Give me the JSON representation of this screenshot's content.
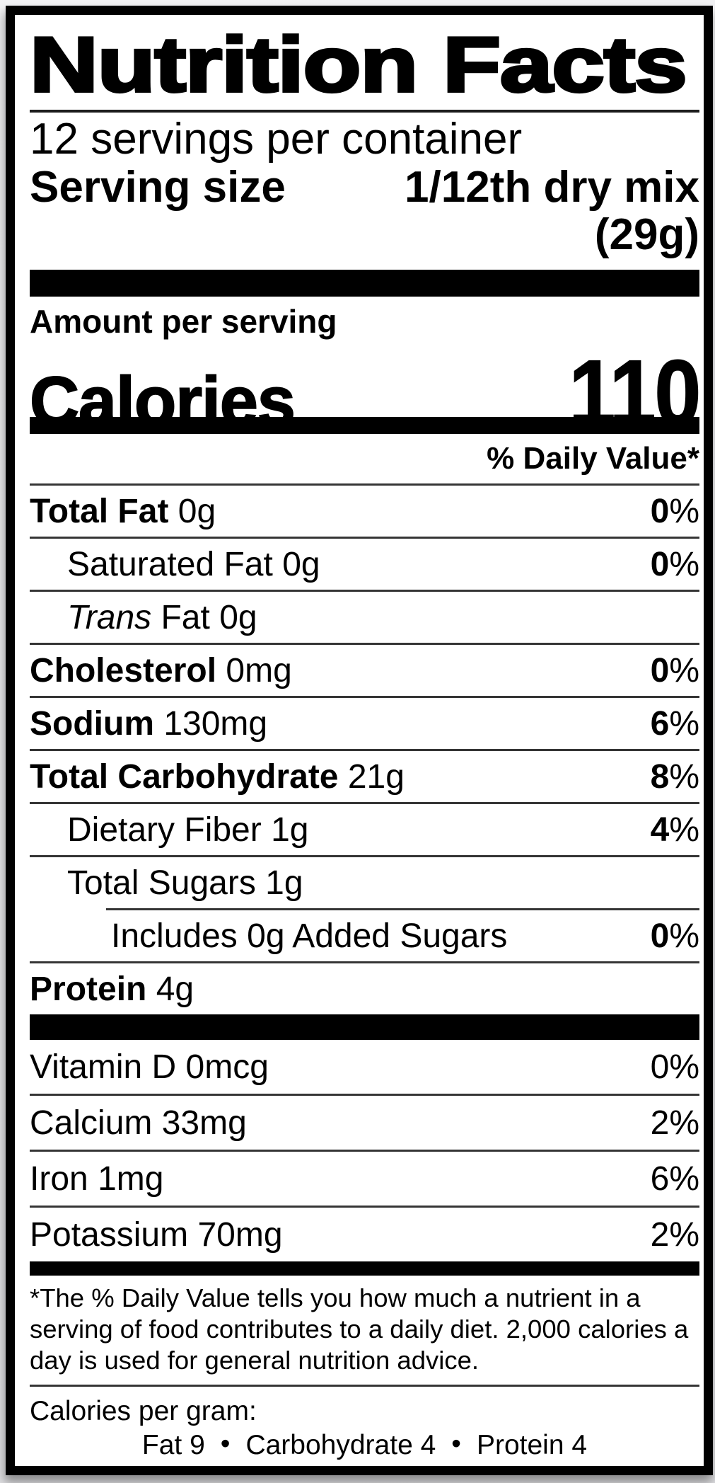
{
  "label": {
    "title": "Nutrition Facts",
    "servings_per_container": "12 servings per container",
    "serving_size": {
      "label": "Serving size",
      "value": "1/12th dry mix",
      "weight": "(29g)"
    },
    "amount_per_serving": "Amount per serving",
    "calories": {
      "label": "Calories",
      "value": "110"
    },
    "daily_value_header": "% Daily Value*",
    "nutrient_rows": [
      {
        "name": "Total Fat",
        "amount": "0g",
        "dv": "0",
        "pct": "%"
      },
      {
        "name": "Saturated Fat",
        "amount": "0g",
        "dv": "0",
        "pct": "%"
      },
      {
        "name_italic": "Trans",
        "name": "Fat",
        "amount": "0g"
      },
      {
        "name": "Cholesterol",
        "amount": "0mg",
        "dv": "0",
        "pct": "%"
      },
      {
        "name": "Sodium",
        "amount": "130mg",
        "dv": "6",
        "pct": "%"
      },
      {
        "name": "Total Carbohydrate",
        "amount": "21g",
        "dv": "8",
        "pct": "%"
      },
      {
        "name": "Dietary Fiber",
        "amount": "1g",
        "dv": "4",
        "pct": "%"
      },
      {
        "name": "Total Sugars",
        "amount": "1g"
      },
      {
        "name": "Includes 0g Added Sugars",
        "dv": "0",
        "pct": "%"
      },
      {
        "name": "Protein",
        "amount": "4g"
      }
    ],
    "vitamin_rows": [
      {
        "name": "Vitamin D",
        "amount": "0mcg",
        "dv": "0%"
      },
      {
        "name": "Calcium",
        "amount": "33mg",
        "dv": "2%"
      },
      {
        "name": "Iron",
        "amount": "1mg",
        "dv": "6%"
      },
      {
        "name": "Potassium",
        "amount": "70mg",
        "dv": "2%"
      }
    ],
    "footnote": "*The % Daily Value tells you how much a nutrient in a serving of food contributes to a daily diet. 2,000 calories a day is used for general nutrition advice.",
    "calories_per_gram": {
      "label": "Calories per gram:",
      "fat": "Fat 9",
      "carbohydrate": "Carbohydrate 4",
      "protein": "Protein 4",
      "bullet": "•"
    }
  },
  "colors": {
    "text": "#000000",
    "bars": "#000000",
    "dividers": "#353535",
    "label_background": "#ffffff",
    "page_background": "#eaeaec"
  }
}
